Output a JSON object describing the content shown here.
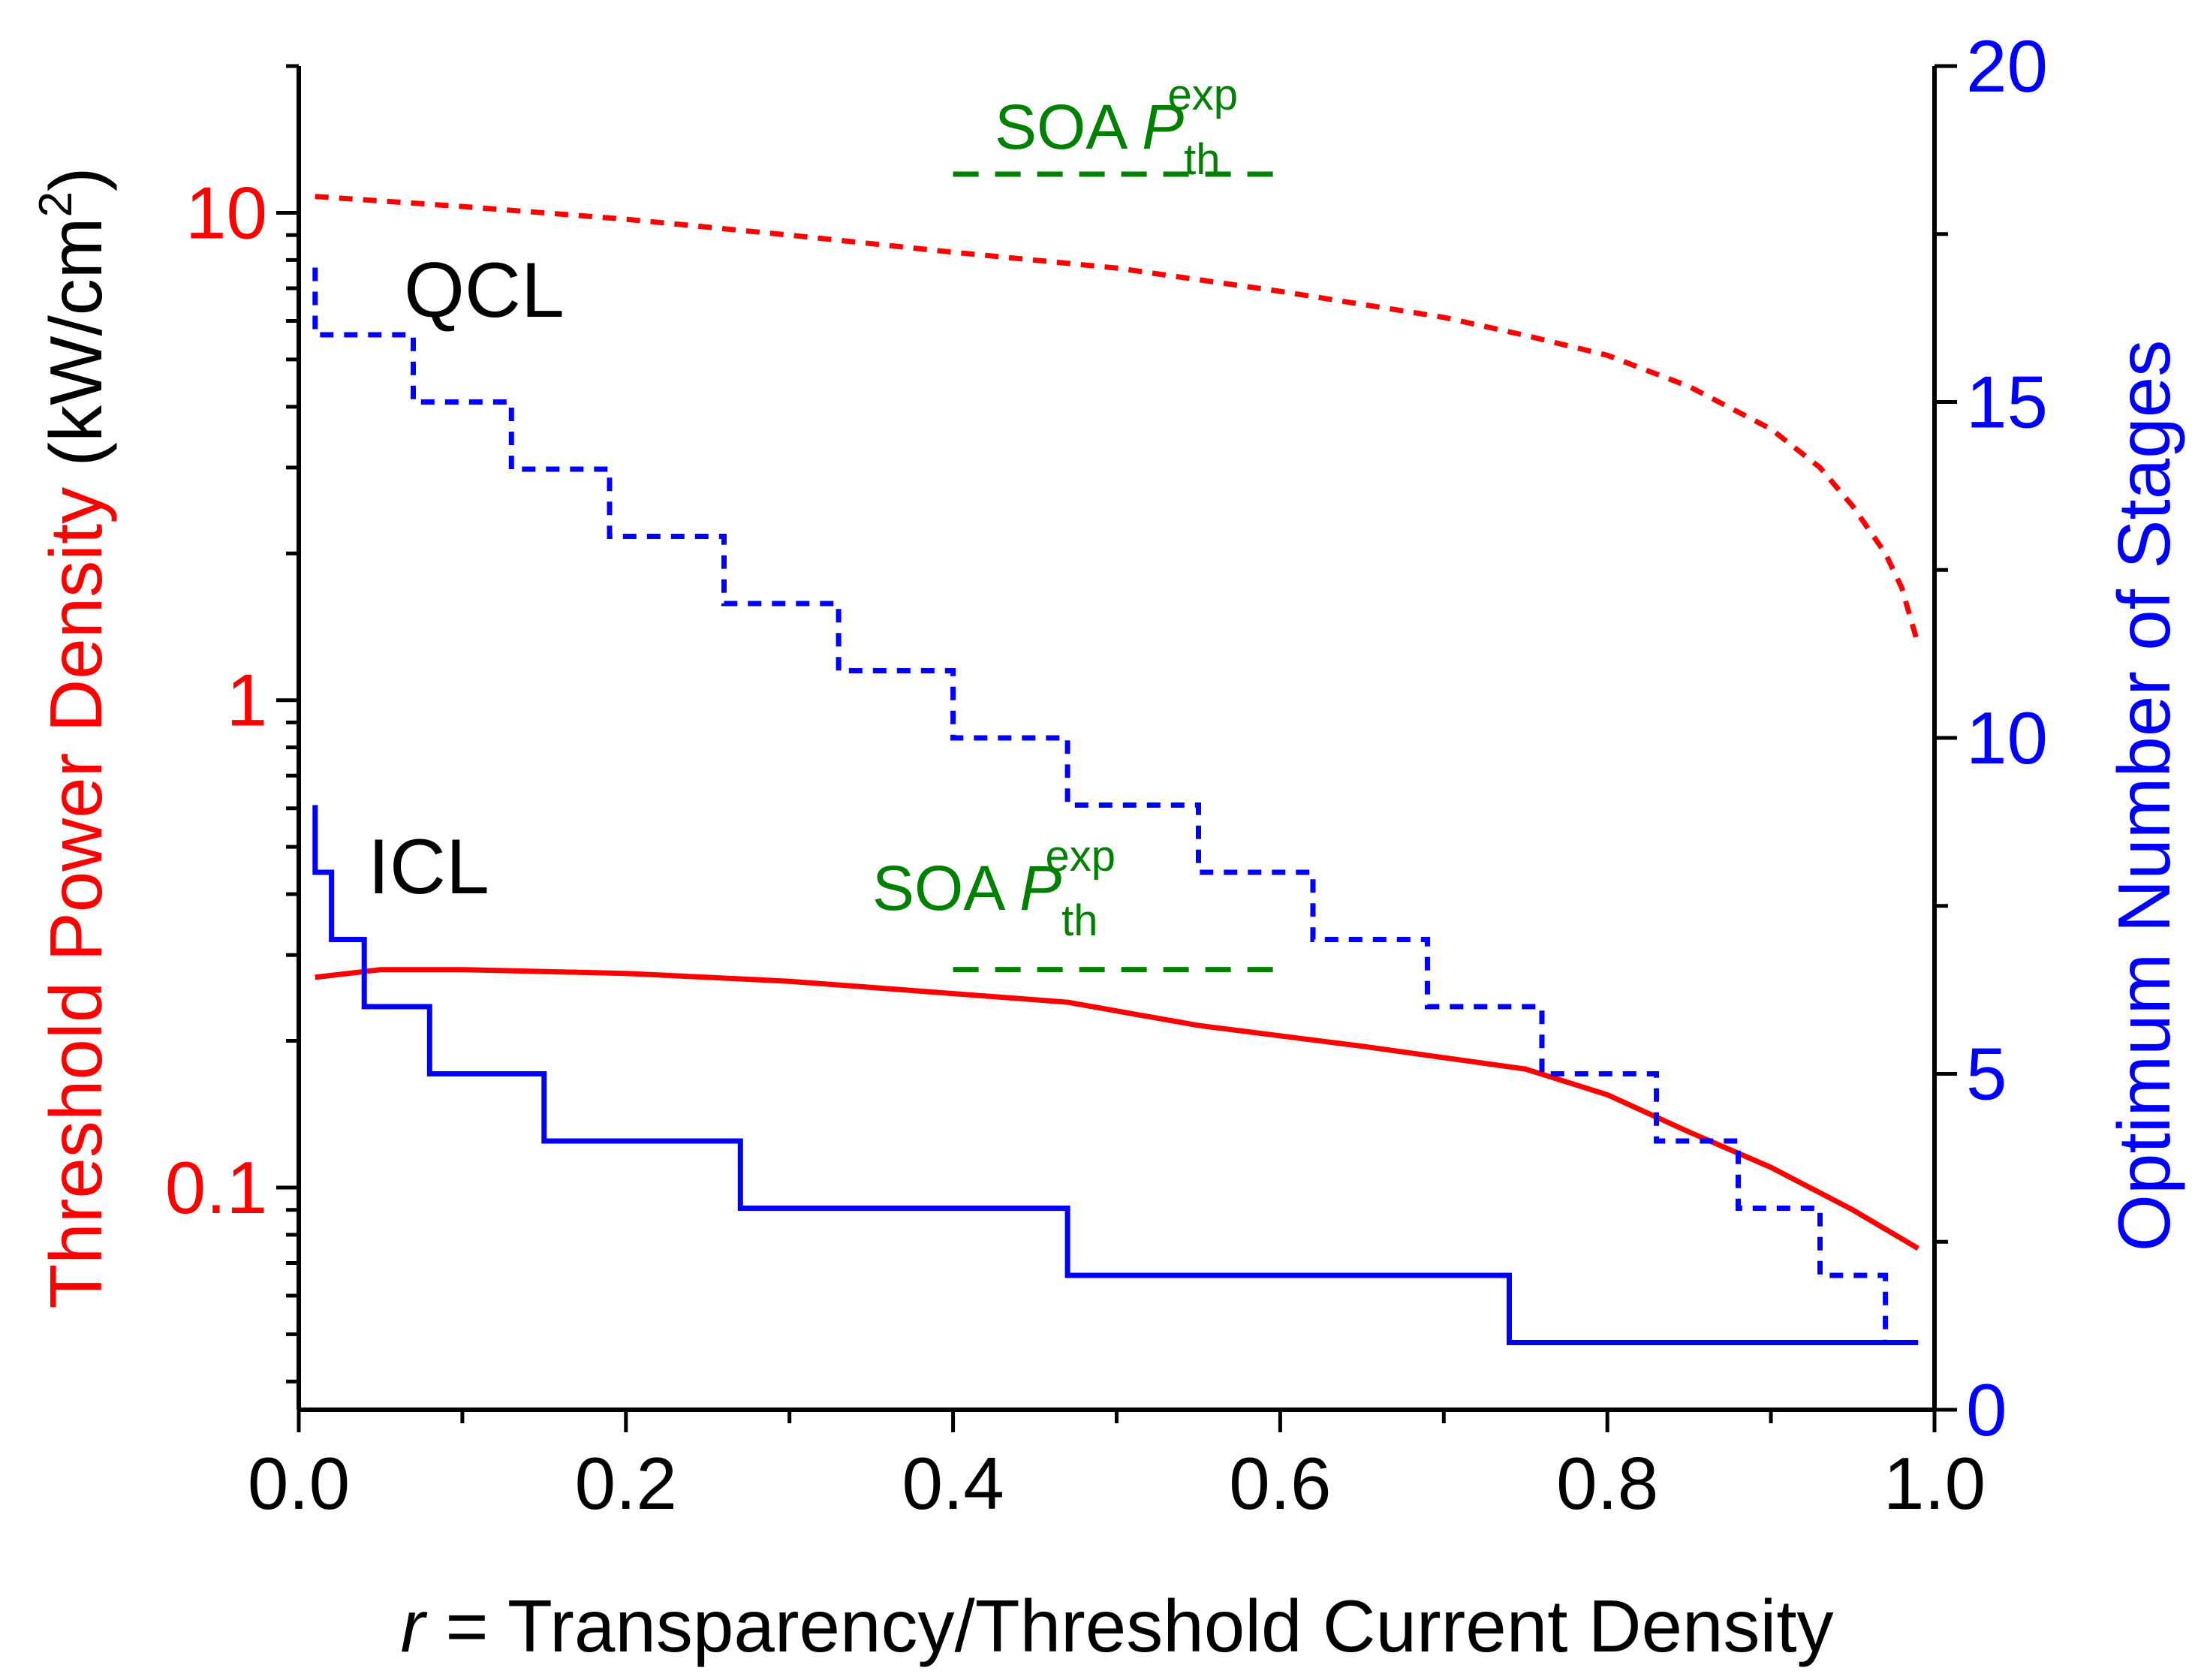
{
  "chart_data": {
    "type": "line",
    "colors": {
      "red": "#ff0000",
      "blue": "#0000ff",
      "green": "#008000",
      "black": "#000000"
    },
    "x_axis": {
      "label_var": "r",
      "label_rest": " = Transparency/Threshold Current Density",
      "range": [
        0,
        1
      ],
      "ticks": [
        0.0,
        0.2,
        0.4,
        0.6,
        0.8,
        1.0
      ],
      "tick_labels": [
        "0.0",
        "0.2",
        "0.4",
        "0.6",
        "0.8",
        "1.0"
      ]
    },
    "y_left": {
      "label_main": "Threshold Power Density",
      "label_unit": "(kW/cm",
      "label_sup": "2",
      "label_close": ")",
      "scale": "log",
      "range": [
        0.035,
        20
      ],
      "ticks": [
        0.1,
        1,
        10
      ],
      "tick_labels": [
        "0.1",
        "1",
        "10"
      ]
    },
    "y_right": {
      "label": "Optimum Number of Stages",
      "scale": "linear",
      "range": [
        0,
        20
      ],
      "ticks": [
        0,
        5,
        10,
        15,
        20
      ],
      "tick_labels": [
        "0",
        "5",
        "10",
        "15",
        "20"
      ]
    },
    "labels": {
      "qcl": "QCL",
      "icl": "ICL"
    },
    "soa_annotations": [
      {
        "text": "SOA ",
        "var": "P",
        "sub": "th",
        "sup": "exp",
        "value": 12,
        "x_range": [
          0.4,
          0.6
        ]
      },
      {
        "text": "SOA ",
        "var": "P",
        "sub": "th",
        "sup": "exp",
        "value": 0.28,
        "x_range": [
          0.4,
          0.6
        ]
      }
    ],
    "series": [
      {
        "name": "QCL threshold power density",
        "axis": "left",
        "style": "dashed",
        "color": "red",
        "x": [
          0.01,
          0.1,
          0.2,
          0.3,
          0.4,
          0.5,
          0.6,
          0.7,
          0.75,
          0.8,
          0.85,
          0.9,
          0.93,
          0.95,
          0.97,
          0.98,
          0.99
        ],
        "y": [
          10.8,
          10.3,
          9.7,
          9.0,
          8.3,
          7.7,
          6.9,
          6.1,
          5.6,
          5.1,
          4.4,
          3.6,
          3.0,
          2.5,
          2.0,
          1.7,
          1.3
        ]
      },
      {
        "name": "ICL threshold power density",
        "axis": "left",
        "style": "solid",
        "color": "red",
        "x": [
          0.01,
          0.05,
          0.1,
          0.2,
          0.3,
          0.4,
          0.47,
          0.55,
          0.65,
          0.75,
          0.8,
          0.85,
          0.9,
          0.95,
          0.99
        ],
        "y": [
          0.27,
          0.28,
          0.28,
          0.275,
          0.265,
          0.25,
          0.24,
          0.215,
          0.195,
          0.175,
          0.155,
          0.13,
          0.11,
          0.09,
          0.075
        ]
      },
      {
        "name": "QCL optimum number of stages",
        "axis": "right",
        "style": "dashed",
        "color": "blue",
        "step": true,
        "x": [
          0.01,
          0.01,
          0.07,
          0.07,
          0.13,
          0.13,
          0.19,
          0.19,
          0.26,
          0.26,
          0.33,
          0.33,
          0.4,
          0.4,
          0.47,
          0.47,
          0.55,
          0.55,
          0.62,
          0.62,
          0.69,
          0.69,
          0.76,
          0.76,
          0.83,
          0.83,
          0.88,
          0.88,
          0.93,
          0.93,
          0.97,
          0.97
        ],
        "y": [
          17,
          16,
          16,
          15,
          15,
          14,
          14,
          13,
          13,
          12,
          12,
          11,
          11,
          10,
          10,
          9,
          9,
          8,
          8,
          7,
          7,
          6,
          6,
          5,
          5,
          4,
          4,
          3,
          3,
          2,
          2,
          1
        ]
      },
      {
        "name": "ICL optimum number of stages",
        "axis": "right",
        "style": "solid",
        "color": "blue",
        "step": true,
        "x": [
          0.01,
          0.01,
          0.02,
          0.02,
          0.04,
          0.04,
          0.08,
          0.08,
          0.15,
          0.15,
          0.27,
          0.27,
          0.47,
          0.47,
          0.74,
          0.74,
          0.99
        ],
        "y": [
          9,
          8,
          8,
          7,
          7,
          6,
          6,
          5,
          5,
          4,
          4,
          3,
          3,
          2,
          2,
          1,
          1
        ]
      }
    ]
  }
}
